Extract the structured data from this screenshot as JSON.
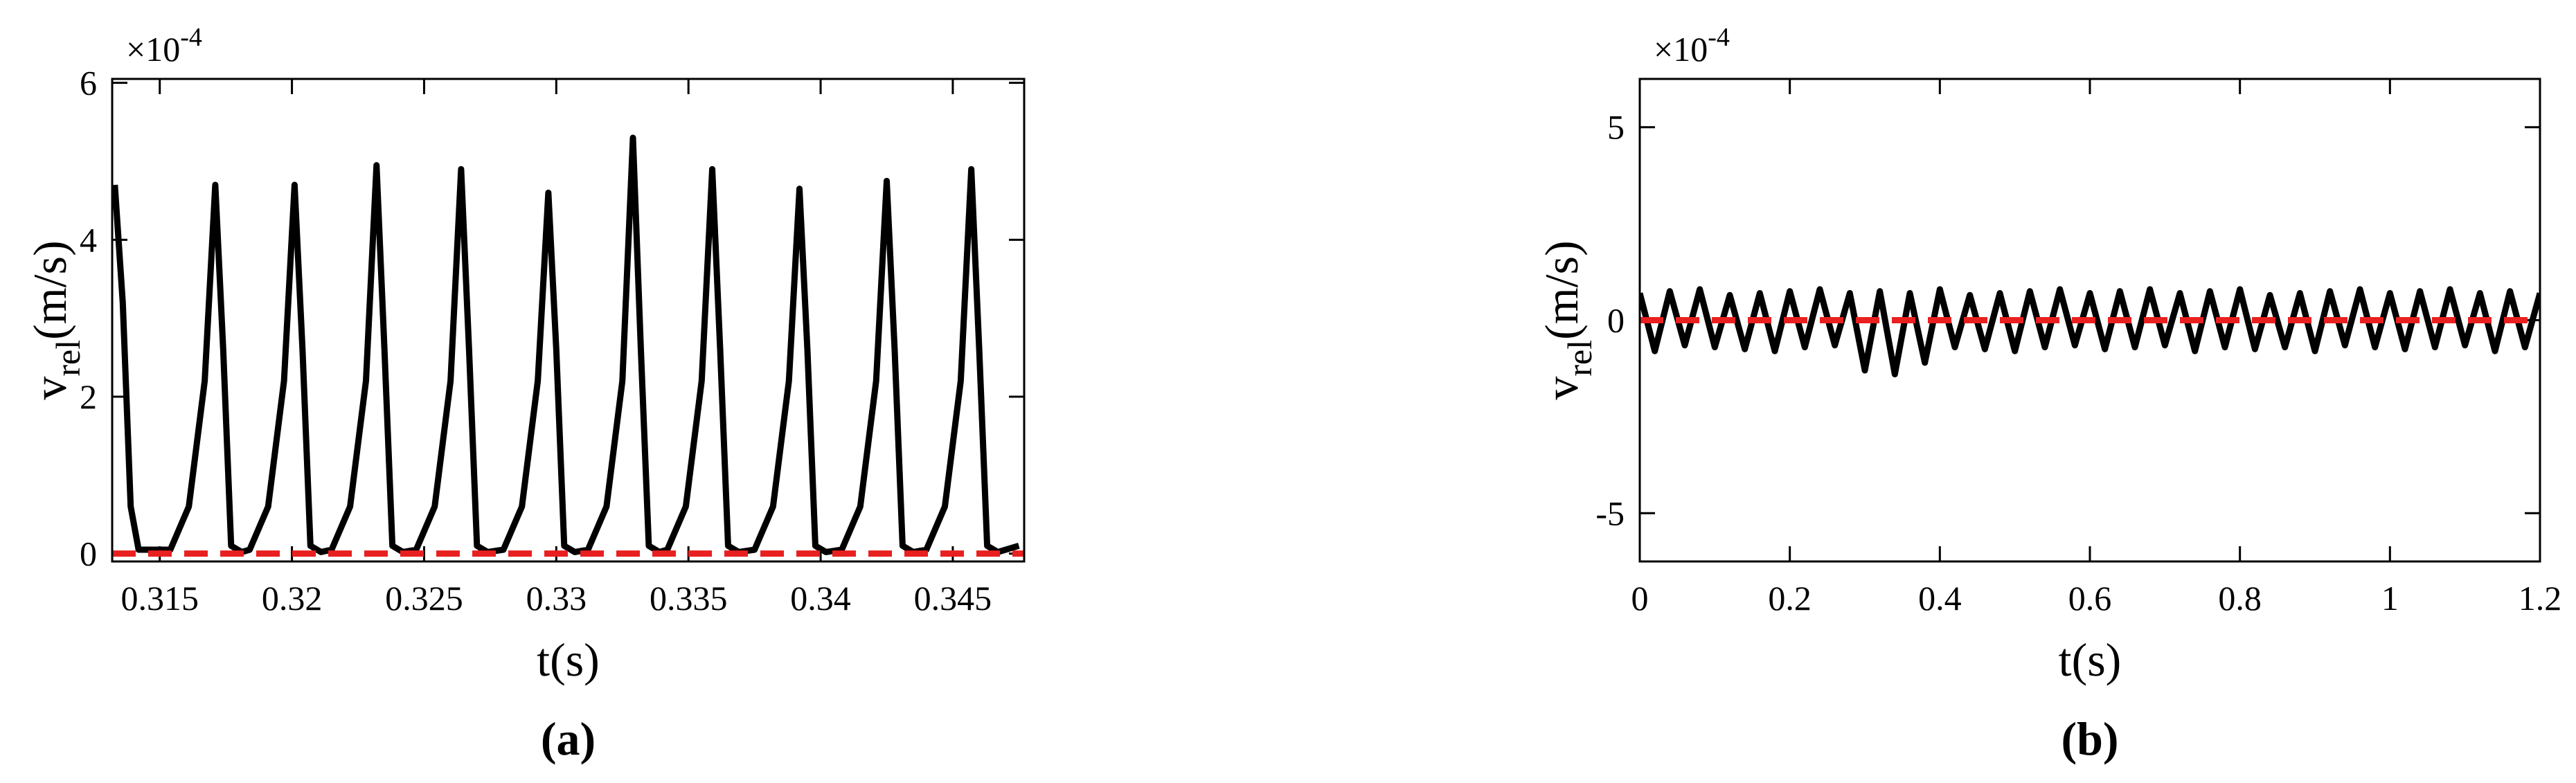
{
  "chart_data": [
    {
      "type": "line",
      "panel_label": "(a)",
      "xlabel": "t(s)",
      "ylabel": "v",
      "ylabel_sub": "rel",
      "ylabel_unit": "(m/s)",
      "multiplier": "×10",
      "exponent": "-4",
      "xlim": [
        0.3132,
        0.3477
      ],
      "ylim": [
        -0.1,
        6.05
      ],
      "xticks": [
        0.315,
        0.32,
        0.325,
        0.33,
        0.335,
        0.34,
        0.345
      ],
      "yticks": [
        0,
        2,
        4,
        6
      ],
      "grid": false,
      "series": [
        {
          "color": "#000000",
          "dash": false,
          "x": [
            0.3133,
            0.3136,
            0.3139,
            0.3142,
            0.3154,
            0.3161,
            0.3167,
            0.3171,
            0.3174,
            0.3177,
            0.3181,
            0.3184,
            0.3191,
            0.3197,
            0.3201,
            0.3204,
            0.3207,
            0.3211,
            0.3215,
            0.3222,
            0.3228,
            0.3232,
            0.3235,
            0.3238,
            0.3242,
            0.3247,
            0.3254,
            0.326,
            0.3264,
            0.3267,
            0.327,
            0.3274,
            0.328,
            0.3287,
            0.3293,
            0.3297,
            0.33,
            0.3303,
            0.3307,
            0.3312,
            0.3319,
            0.3325,
            0.3329,
            0.3332,
            0.3335,
            0.3339,
            0.3342,
            0.3349,
            0.3355,
            0.3359,
            0.3362,
            0.3365,
            0.3369,
            0.3375,
            0.3382,
            0.3388,
            0.3392,
            0.3395,
            0.3398,
            0.3402,
            0.3408,
            0.3415,
            0.3421,
            0.3425,
            0.3428,
            0.3431,
            0.3435,
            0.344,
            0.3447,
            0.3453,
            0.3457,
            0.346,
            0.3463,
            0.3467,
            0.3475
          ],
          "values": [
            4.7,
            3.2,
            0.6,
            0.05,
            0.05,
            0.6,
            2.2,
            4.7,
            2.6,
            0.1,
            0.02,
            0.05,
            0.6,
            2.2,
            4.7,
            2.6,
            0.1,
            0.02,
            0.05,
            0.6,
            2.2,
            4.95,
            2.6,
            0.1,
            0.02,
            0.05,
            0.6,
            2.2,
            4.9,
            2.6,
            0.1,
            0.02,
            0.05,
            0.6,
            2.2,
            4.6,
            2.6,
            0.1,
            0.02,
            0.05,
            0.6,
            2.2,
            5.3,
            2.6,
            0.1,
            0.02,
            0.05,
            0.6,
            2.2,
            4.9,
            2.6,
            0.1,
            0.02,
            0.05,
            0.6,
            2.2,
            4.65,
            2.6,
            0.1,
            0.02,
            0.05,
            0.6,
            2.2,
            4.75,
            2.6,
            0.1,
            0.02,
            0.05,
            0.6,
            2.2,
            4.9,
            2.6,
            0.1,
            0.02,
            0.1
          ]
        },
        {
          "color": "#e8201f",
          "dash": true,
          "x": [
            0.3132,
            0.3477
          ],
          "values": [
            0,
            0
          ]
        }
      ]
    },
    {
      "type": "line",
      "panel_label": "(b)",
      "xlabel": "t(s)",
      "ylabel": "v",
      "ylabel_sub": "rel",
      "ylabel_unit": "(m/s)",
      "multiplier": "×10",
      "exponent": "-4",
      "xlim": [
        0,
        1.2
      ],
      "ylim": [
        -6.25,
        6.25
      ],
      "xticks": [
        0,
        0.2,
        0.4,
        0.6,
        0.8,
        1,
        1.2
      ],
      "yticks": [
        -5,
        0,
        5
      ],
      "grid": false,
      "series": [
        {
          "color": "#000000",
          "dash": false,
          "x": [
            0,
            0.02,
            0.04,
            0.06,
            0.08,
            0.1,
            0.12,
            0.14,
            0.16,
            0.18,
            0.2,
            0.22,
            0.24,
            0.26,
            0.28,
            0.3,
            0.32,
            0.34,
            0.36,
            0.38,
            0.4,
            0.42,
            0.44,
            0.46,
            0.48,
            0.5,
            0.52,
            0.54,
            0.56,
            0.58,
            0.6,
            0.62,
            0.64,
            0.66,
            0.68,
            0.7,
            0.72,
            0.74,
            0.76,
            0.78,
            0.8,
            0.82,
            0.84,
            0.86,
            0.88,
            0.9,
            0.92,
            0.94,
            0.96,
            0.98,
            1,
            1.02,
            1.04,
            1.06,
            1.08,
            1.1,
            1.12,
            1.14,
            1.16,
            1.18,
            1.2
          ],
          "values": [
            0.7,
            -0.8,
            0.75,
            -0.65,
            0.8,
            -0.7,
            0.65,
            -0.75,
            0.7,
            -0.8,
            0.75,
            -0.7,
            0.8,
            -0.65,
            0.7,
            -1.3,
            0.75,
            -1.4,
            0.7,
            -1.1,
            0.8,
            -0.7,
            0.65,
            -0.75,
            0.7,
            -0.8,
            0.75,
            -0.7,
            0.8,
            -0.65,
            0.7,
            -0.75,
            0.75,
            -0.7,
            0.8,
            -0.65,
            0.7,
            -0.8,
            0.75,
            -0.7,
            0.8,
            -0.75,
            0.65,
            -0.7,
            0.7,
            -0.8,
            0.75,
            -0.65,
            0.8,
            -0.7,
            0.7,
            -0.75,
            0.75,
            -0.7,
            0.8,
            -0.65,
            0.7,
            -0.8,
            0.75,
            -0.7,
            0.7
          ]
        },
        {
          "color": "#e8201f",
          "dash": true,
          "x": [
            0,
            1.2
          ],
          "values": [
            0,
            0
          ]
        }
      ]
    }
  ]
}
